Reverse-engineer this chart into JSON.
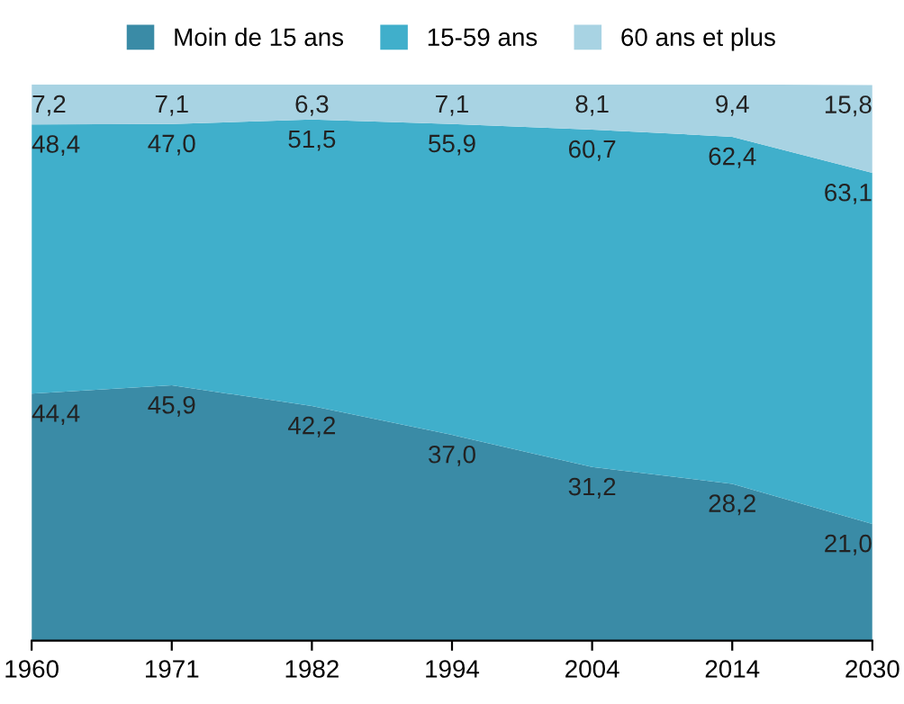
{
  "chart_data": {
    "type": "area",
    "stacked": true,
    "legend": "top",
    "grid": false,
    "categories": [
      "1960",
      "1971",
      "1982",
      "1994",
      "2004",
      "2014",
      "2030"
    ],
    "series": [
      {
        "name": "Moin de 15 ans",
        "color": "#3a8ba6",
        "values": [
          44.4,
          45.9,
          42.2,
          37.0,
          31.2,
          28.2,
          21.0
        ],
        "value_labels": [
          "44,4",
          "45,9",
          "42,2",
          "37,0",
          "31,2",
          "28,2",
          "21,0"
        ]
      },
      {
        "name": "15-59 ans",
        "color": "#40afcb",
        "values": [
          48.4,
          47.0,
          51.5,
          55.9,
          60.7,
          62.4,
          63.1
        ],
        "value_labels": [
          "48,4",
          "47,0",
          "51,5",
          "55,9",
          "60,7",
          "62,4",
          "63,1"
        ]
      },
      {
        "name": "60 ans et plus",
        "color": "#a8d3e3",
        "values": [
          7.2,
          7.1,
          6.3,
          7.1,
          8.1,
          9.4,
          15.8
        ],
        "value_labels": [
          "7,2",
          "7,1",
          "6,3",
          "7,1",
          "8,1",
          "9,4",
          "15,8"
        ]
      }
    ]
  }
}
